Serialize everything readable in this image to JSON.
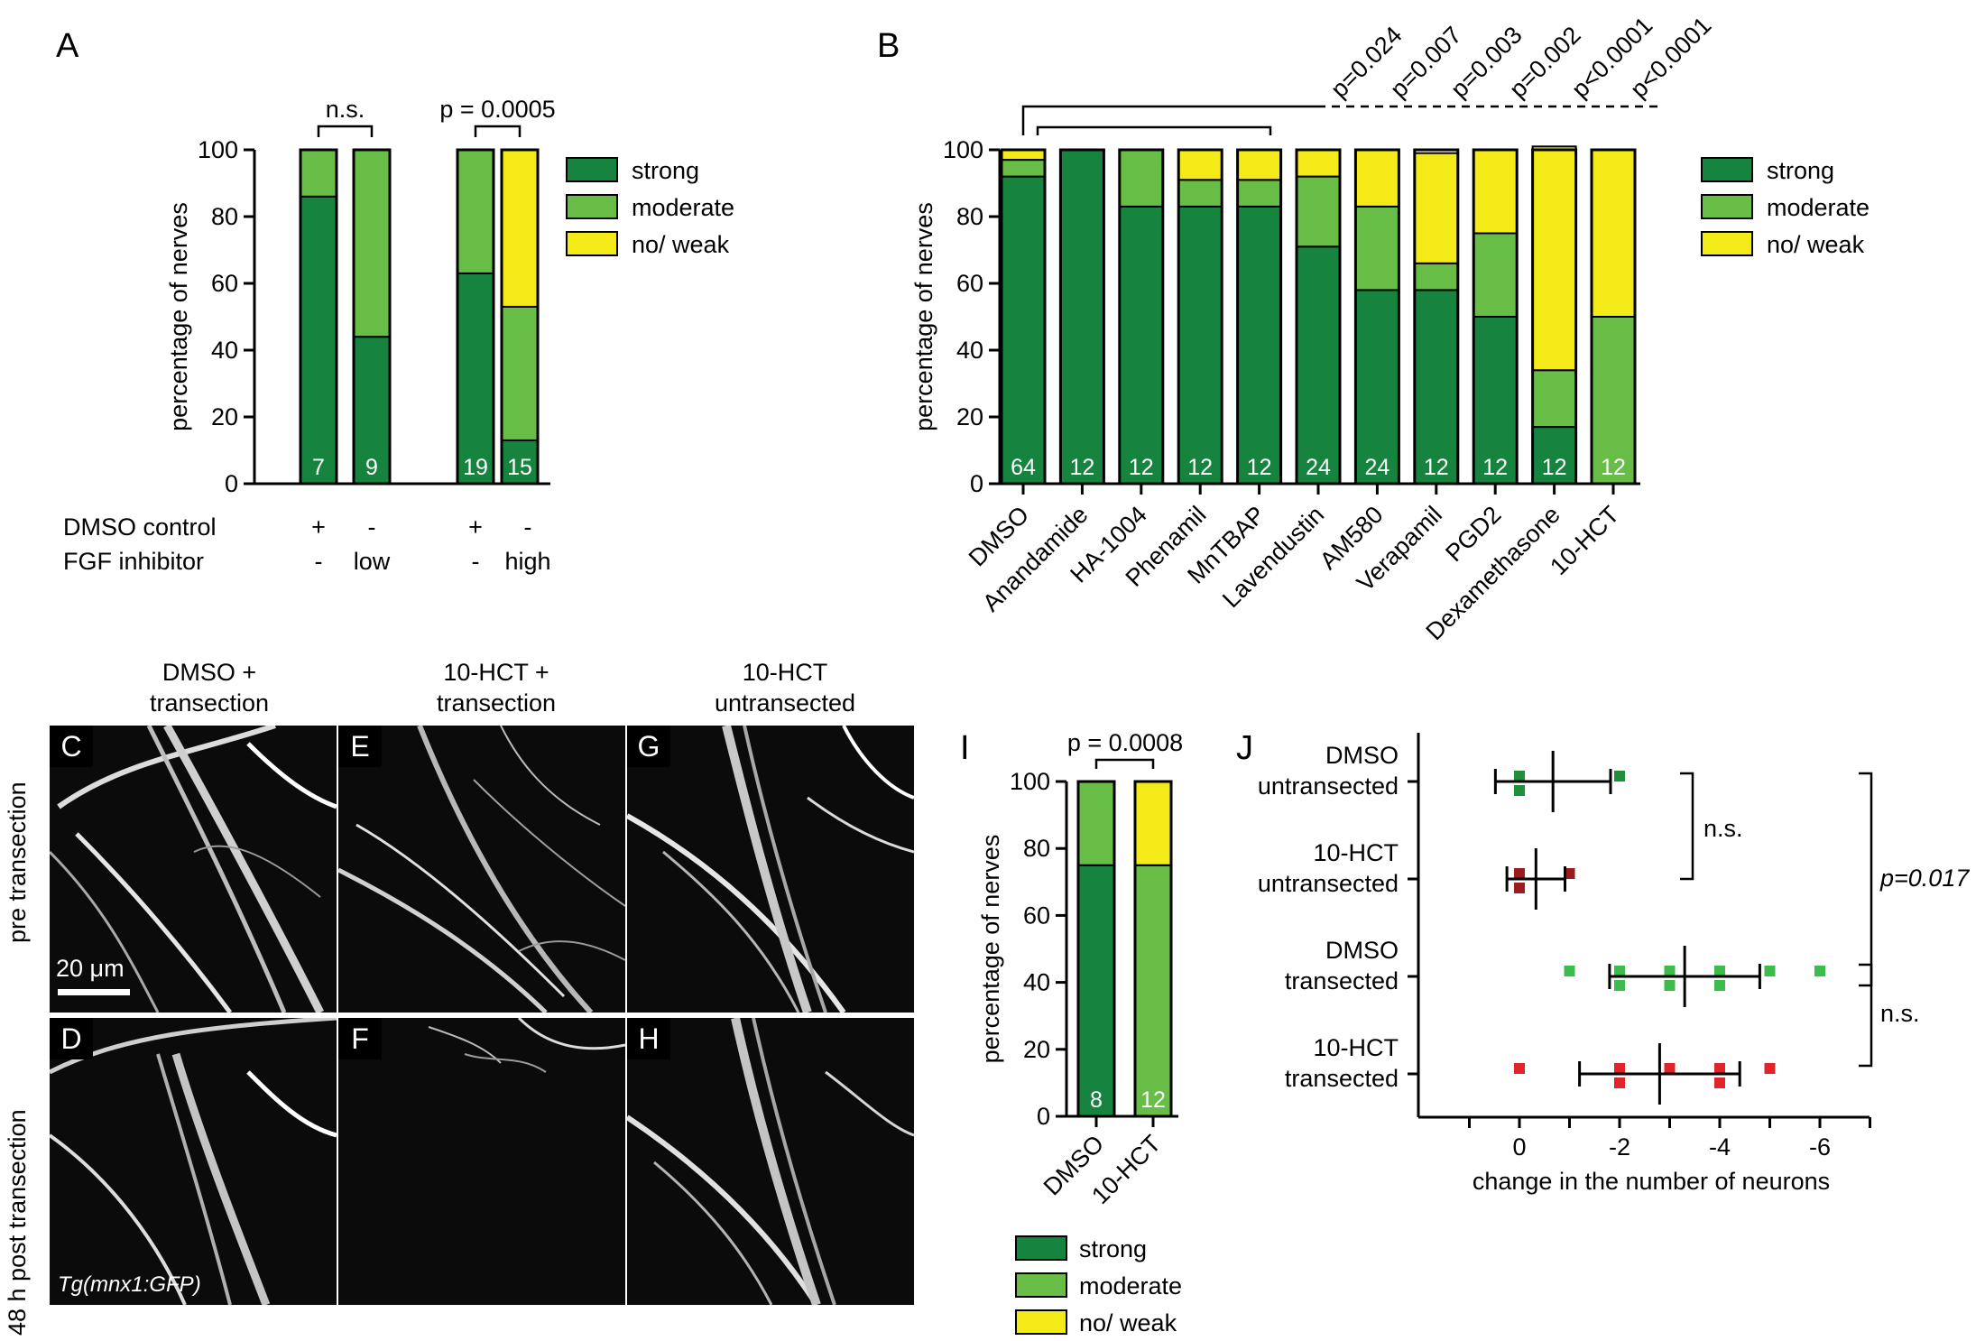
{
  "colors": {
    "strong": "#16843f",
    "moderate": "#67bd45",
    "no_weak": "#f4ea17",
    "dmso_dot": "#1f8f3a",
    "hct_dot": "#9b1c1f",
    "dmso_t_dot": "#3cbd4b",
    "hct_t_dot": "#e0242a"
  },
  "panel_letters": {
    "A": "A",
    "B": "B",
    "C": "C",
    "D": "D",
    "E": "E",
    "F": "F",
    "G": "G",
    "H": "H",
    "I": "I",
    "J": "J"
  },
  "legend": {
    "strong": "strong",
    "moderate": "moderate",
    "no_weak": "no/ weak"
  },
  "chart_data": [
    {
      "panel": "A",
      "type": "bar",
      "stacked": true,
      "ylabel": "percentage of nerves",
      "ylim": [
        0,
        100
      ],
      "yticks": [
        0,
        20,
        40,
        60,
        80,
        100
      ],
      "bars": [
        {
          "n": "7",
          "strong": 86,
          "moderate": 14,
          "no_weak": 0
        },
        {
          "n": "9",
          "strong": 44,
          "moderate": 56,
          "no_weak": 0
        },
        {
          "n": "19",
          "strong": 63,
          "moderate": 37,
          "no_weak": 0
        },
        {
          "n": "15",
          "strong": 13,
          "moderate": 40,
          "no_weak": 47
        }
      ],
      "row_labels": [
        "DMSO control",
        "FGF inhibitor"
      ],
      "row_values": [
        [
          "+",
          "-",
          "+",
          "-"
        ],
        [
          "-",
          "low",
          "-",
          "high"
        ]
      ],
      "annotations": [
        "n.s.",
        "p = 0.0005"
      ]
    },
    {
      "panel": "B",
      "type": "bar",
      "stacked": true,
      "ylabel": "percentage of nerves",
      "ylim": [
        0,
        100
      ],
      "yticks": [
        0,
        20,
        40,
        60,
        80,
        100
      ],
      "categories": [
        "DMSO",
        "Anandamide",
        "HA-1004",
        "Phenamil",
        "MnTBAP",
        "Lavendustin",
        "AM580",
        "Verapamil",
        "PGD2",
        "Dexamethasone",
        "10-HCT"
      ],
      "n": [
        "64",
        "12",
        "12",
        "12",
        "12",
        "24",
        "24",
        "12",
        "12",
        "12",
        "12"
      ],
      "strong": [
        92,
        100,
        83,
        83,
        83,
        71,
        58,
        58,
        50,
        17,
        0
      ],
      "moderate": [
        5,
        0,
        17,
        8,
        8,
        21,
        25,
        8,
        25,
        17,
        50
      ],
      "no_weak": [
        3,
        0,
        0,
        9,
        9,
        8,
        17,
        33,
        25,
        67,
        50
      ],
      "pvalues": [
        "p=0.024",
        "p=0.007",
        "p=0.003",
        "p=0.002",
        "p<0.0001",
        "p<0.0001"
      ]
    },
    {
      "panel": "I",
      "type": "bar",
      "stacked": true,
      "ylabel": "percentage of nerves",
      "ylim": [
        0,
        100
      ],
      "yticks": [
        0,
        20,
        40,
        60,
        80,
        100
      ],
      "categories": [
        "DMSO",
        "10-HCT"
      ],
      "n": [
        "8",
        "12"
      ],
      "strong": [
        75,
        0
      ],
      "moderate": [
        25,
        75
      ],
      "no_weak": [
        0,
        25
      ],
      "annotations": [
        "p = 0.0008"
      ]
    },
    {
      "panel": "J",
      "type": "scatter",
      "xlabel": "change in the number of neurons",
      "xticks": [
        "0",
        "-2",
        "-4",
        "-6"
      ],
      "xlim": [
        2,
        -7
      ],
      "groups": [
        {
          "label": "DMSO\nuntransected",
          "points": [
            0,
            0,
            -2
          ],
          "mean": -0.67,
          "sd": 1.15
        },
        {
          "label": "10-HCT\nuntransected",
          "points": [
            0,
            0,
            -1
          ],
          "mean": -0.33,
          "sd": 0.58
        },
        {
          "label": "DMSO\ntransected",
          "points": [
            -1,
            -2,
            -2,
            -3,
            -3,
            -4,
            -4,
            -5,
            -6
          ],
          "mean": -3.3,
          "sd": 1.5
        },
        {
          "label": "10-HCT\ntransected",
          "points": [
            0,
            -2,
            -2,
            -3,
            -4,
            -4,
            -5
          ],
          "mean": -2.8,
          "sd": 1.6
        }
      ],
      "annotations": [
        "n.s.",
        "p=0.017",
        "n.s."
      ]
    }
  ],
  "micro": {
    "columns": [
      "DMSO +\ntransection",
      "10-HCT +\ntransection",
      "10-HCT\nuntransected"
    ],
    "rows": [
      "pre transection",
      "48 h post transection"
    ],
    "scale_bar": "20 μm",
    "transgene": "Tg(mnx1:GFP)"
  }
}
